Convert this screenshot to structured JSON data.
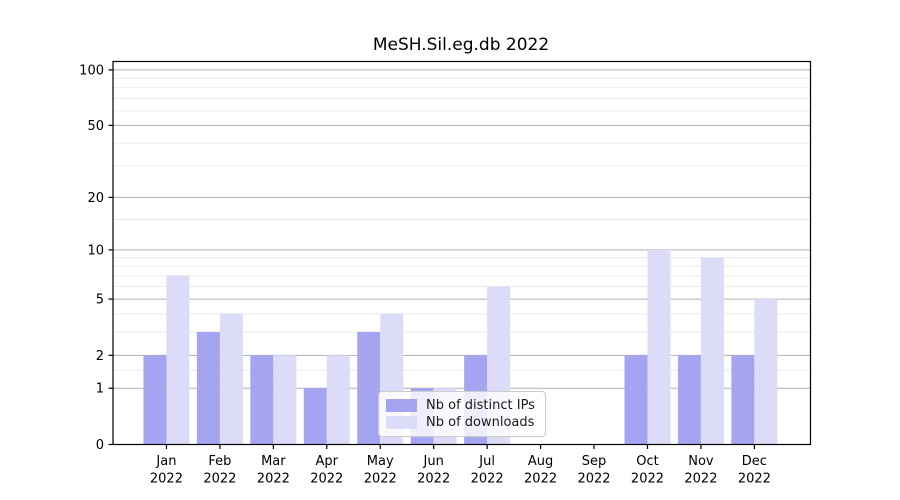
{
  "chart_data": {
    "type": "bar",
    "title": "MeSH.Sil.eg.db 2022",
    "year_label": "2022",
    "categories": [
      "Jan",
      "Feb",
      "Mar",
      "Apr",
      "May",
      "Jun",
      "Jul",
      "Aug",
      "Sep",
      "Oct",
      "Nov",
      "Dec"
    ],
    "series": [
      {
        "name": "Nb of distinct IPs",
        "color": "#a4a4f0",
        "values": [
          2,
          3,
          2,
          1,
          3,
          1,
          2,
          0,
          0,
          2,
          2,
          2
        ]
      },
      {
        "name": "Nb of downloads",
        "color": "#dcdcf9",
        "values": [
          7,
          4,
          2,
          2,
          4,
          1,
          6,
          0,
          0,
          10,
          9,
          5
        ]
      }
    ],
    "y_axis": {
      "scale": "log1p",
      "ticks": [
        0,
        1,
        2,
        5,
        10,
        20,
        50,
        100
      ],
      "minor_ticks": [
        1.5,
        3,
        4,
        6,
        7,
        8,
        9,
        15,
        30,
        40,
        60,
        70,
        80,
        90
      ],
      "max": 111
    },
    "legend_position": "lower center",
    "grid": true,
    "colors": {
      "major_grid": "#b0b0b0",
      "minor_grid": "#eaeaea",
      "spine": "#000000",
      "tick_text": "#000000"
    }
  }
}
